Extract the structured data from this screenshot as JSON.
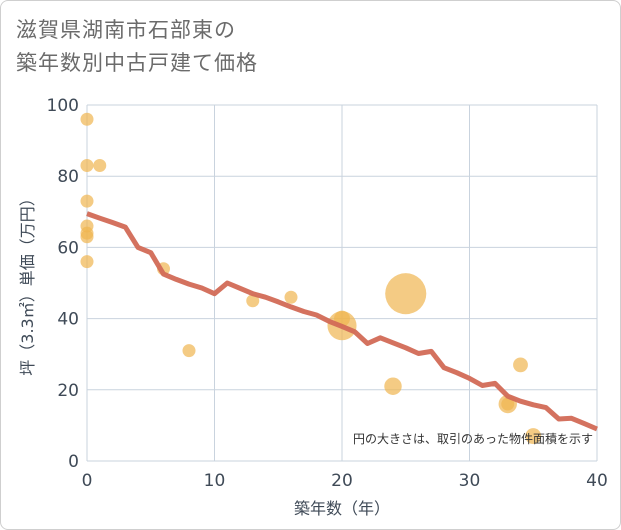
{
  "title_lines": [
    "滋賀県湖南市石部東の",
    "築年数別中古戸建て価格"
  ],
  "chart_data": {
    "type": "scatter",
    "title": "滋賀県湖南市石部東の築年数別中古戸建て価格",
    "xlabel": "築年数（年）",
    "ylabel": "坪（3.3㎡）単価（万円）",
    "xlim": [
      0,
      40
    ],
    "ylim": [
      0,
      100
    ],
    "xticks": [
      0,
      10,
      20,
      30,
      40
    ],
    "yticks": [
      0,
      20,
      40,
      60,
      80,
      100
    ],
    "grid": true,
    "note": "円の大きさは、取引のあった物件面積を示す",
    "colors": {
      "bubble": "#f0b550",
      "line": "#d26a56",
      "grid": "#c9d3de"
    },
    "points": [
      {
        "x": 0,
        "y": 96,
        "size": 1
      },
      {
        "x": 0,
        "y": 83,
        "size": 1
      },
      {
        "x": 1,
        "y": 83,
        "size": 1
      },
      {
        "x": 0,
        "y": 73,
        "size": 1
      },
      {
        "x": 0,
        "y": 66,
        "size": 1
      },
      {
        "x": 0,
        "y": 64,
        "size": 1
      },
      {
        "x": 0,
        "y": 63,
        "size": 1
      },
      {
        "x": 0,
        "y": 56,
        "size": 1
      },
      {
        "x": 6,
        "y": 54,
        "size": 1
      },
      {
        "x": 8,
        "y": 31,
        "size": 1
      },
      {
        "x": 13,
        "y": 45,
        "size": 1
      },
      {
        "x": 16,
        "y": 46,
        "size": 1
      },
      {
        "x": 20,
        "y": 38,
        "size": 5
      },
      {
        "x": 20,
        "y": 40,
        "size": 1.5
      },
      {
        "x": 24,
        "y": 21,
        "size": 1.8
      },
      {
        "x": 25,
        "y": 47,
        "size": 10
      },
      {
        "x": 33,
        "y": 16,
        "size": 2
      },
      {
        "x": 33,
        "y": 16,
        "size": 1
      },
      {
        "x": 34,
        "y": 27,
        "size": 1.3
      },
      {
        "x": 35,
        "y": 7,
        "size": 1.5
      }
    ],
    "trend": {
      "x": [
        0,
        1,
        2,
        3,
        4,
        5,
        6,
        7,
        8,
        9,
        10,
        11,
        12,
        13,
        14,
        15,
        16,
        17,
        18,
        19,
        20,
        21,
        22,
        23,
        24,
        25,
        26,
        27,
        28,
        29,
        30,
        31,
        32,
        33,
        34,
        35,
        36,
        37,
        38,
        39,
        40
      ],
      "y": [
        69.5,
        68.2,
        67,
        65.7,
        60,
        58.5,
        52.5,
        51,
        49.7,
        48.6,
        47,
        50,
        48.5,
        47,
        46,
        44.7,
        43.3,
        42,
        41,
        39.2,
        37.8,
        36.3,
        33,
        34.6,
        33.2,
        31.8,
        30.2,
        30.8,
        26.2,
        24.8,
        23.2,
        21.2,
        21.8,
        18.2,
        16.8,
        15.8,
        15,
        11.8,
        12,
        10.5,
        9
      ]
    }
  }
}
